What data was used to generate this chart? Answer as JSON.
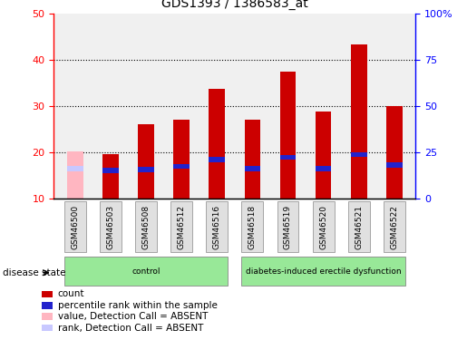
{
  "title": "GDS1393 / 1386583_at",
  "samples": [
    "GSM46500",
    "GSM46503",
    "GSM46508",
    "GSM46512",
    "GSM46516",
    "GSM46518",
    "GSM46519",
    "GSM46520",
    "GSM46521",
    "GSM46522"
  ],
  "count_values": [
    20.3,
    19.7,
    26.1,
    27.1,
    33.7,
    27.1,
    37.4,
    28.9,
    43.3,
    30.1
  ],
  "rank_values": [
    16.5,
    16.2,
    16.3,
    17.0,
    18.5,
    16.5,
    19.0,
    16.5,
    19.6,
    17.3
  ],
  "absent_flags": [
    true,
    false,
    false,
    false,
    false,
    false,
    false,
    false,
    false,
    false
  ],
  "bar_width": 0.45,
  "count_color": "#CC0000",
  "rank_color": "#2222CC",
  "absent_count_color": "#FFB6C1",
  "absent_rank_color": "#C8C8FF",
  "ylim_left": [
    10,
    50
  ],
  "ylim_right": [
    0,
    100
  ],
  "yticks_left": [
    10,
    20,
    30,
    40,
    50
  ],
  "yticks_right": [
    0,
    25,
    50,
    75,
    100
  ],
  "ytick_labels_right": [
    "0",
    "25",
    "50",
    "75",
    "100%"
  ],
  "background_color": "#F0F0F0",
  "disease_state_label": "disease state",
  "legend_items": [
    {
      "label": "count",
      "color": "#CC0000"
    },
    {
      "label": "percentile rank within the sample",
      "color": "#2222CC"
    },
    {
      "label": "value, Detection Call = ABSENT",
      "color": "#FFB6C1"
    },
    {
      "label": "rank, Detection Call = ABSENT",
      "color": "#C8C8FF"
    }
  ]
}
